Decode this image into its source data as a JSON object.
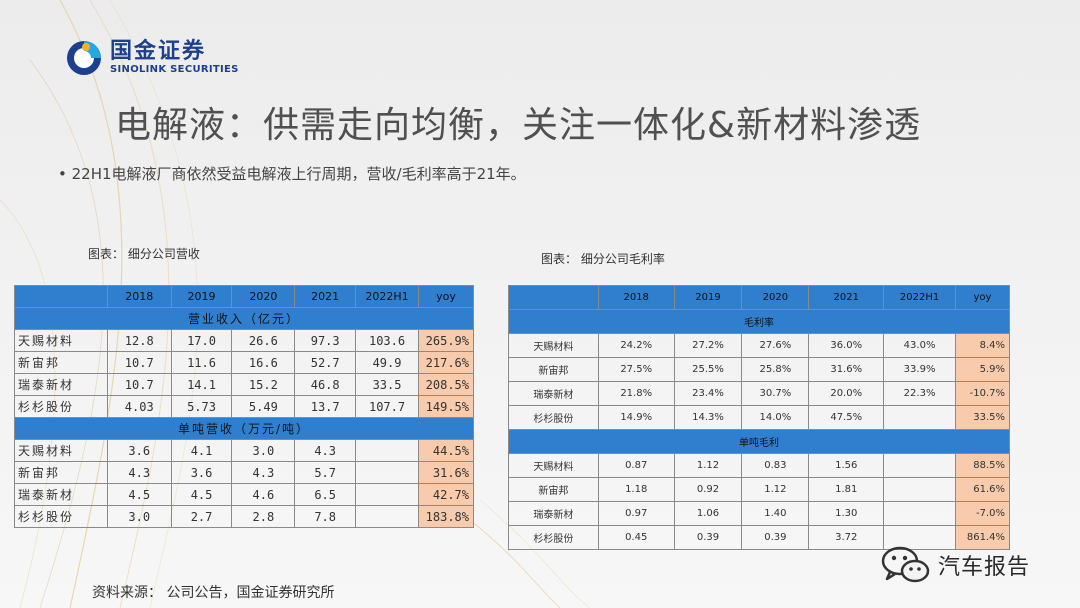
{
  "brand": {
    "name_cn": "国金证券",
    "name_en": "SINOLINK SECURITIES"
  },
  "title": "电解液：供需走向均衡，关注一体化&新材料渗透",
  "bullet": "22H1电解液厂商依然受益电解液上行周期，营收/毛利率高于21年。",
  "left_caption": "图表： 细分公司营收",
  "right_caption": "图表： 细分公司毛利率",
  "columns": [
    "2018",
    "2019",
    "2020",
    "2021",
    "2022H1",
    "yoy"
  ],
  "revenue_table": {
    "section1": "营业收入（亿元）",
    "rows1": [
      {
        "name": "天赐材料",
        "v": [
          "12.8",
          "17.0",
          "26.6",
          "97.3",
          "103.6"
        ],
        "yoy": "265.9%"
      },
      {
        "name": "新宙邦",
        "v": [
          "10.7",
          "11.6",
          "16.6",
          "52.7",
          "49.9"
        ],
        "yoy": "217.6%"
      },
      {
        "name": "瑞泰新材",
        "v": [
          "10.7",
          "14.1",
          "15.2",
          "46.8",
          "33.5"
        ],
        "yoy": "208.5%"
      },
      {
        "name": "杉杉股份",
        "v": [
          "4.03",
          "5.73",
          "5.49",
          "13.7",
          "107.7"
        ],
        "yoy": "149.5%"
      }
    ],
    "section2": "单吨营收（万元/吨）",
    "rows2": [
      {
        "name": "天赐材料",
        "v": [
          "3.6",
          "4.1",
          "3.0",
          "4.3",
          ""
        ],
        "yoy": "44.5%"
      },
      {
        "name": "新宙邦",
        "v": [
          "4.3",
          "3.6",
          "4.3",
          "5.7",
          ""
        ],
        "yoy": "31.6%"
      },
      {
        "name": "瑞泰新材",
        "v": [
          "4.5",
          "4.5",
          "4.6",
          "6.5",
          ""
        ],
        "yoy": "42.7%"
      },
      {
        "name": "杉杉股份",
        "v": [
          "3.0",
          "2.7",
          "2.8",
          "7.8",
          ""
        ],
        "yoy": "183.8%"
      }
    ]
  },
  "margin_table": {
    "section1": "毛利率",
    "rows1": [
      {
        "name": "天赐材料",
        "v": [
          "24.2%",
          "27.2%",
          "27.6%",
          "36.0%",
          "43.0%"
        ],
        "yoy": "8.4%"
      },
      {
        "name": "新宙邦",
        "v": [
          "27.5%",
          "25.5%",
          "25.8%",
          "31.6%",
          "33.9%"
        ],
        "yoy": "5.9%"
      },
      {
        "name": "瑞泰新材",
        "v": [
          "21.8%",
          "23.4%",
          "30.7%",
          "20.0%",
          "22.3%"
        ],
        "yoy": "-10.7%"
      },
      {
        "name": "杉杉股份",
        "v": [
          "14.9%",
          "14.3%",
          "14.0%",
          "47.5%",
          ""
        ],
        "yoy": "33.5%"
      }
    ],
    "section2": "单吨毛利",
    "rows2": [
      {
        "name": "天赐材料",
        "v": [
          "0.87",
          "1.12",
          "0.83",
          "1.56",
          ""
        ],
        "yoy": "88.5%"
      },
      {
        "name": "新宙邦",
        "v": [
          "1.18",
          "0.92",
          "1.12",
          "1.81",
          ""
        ],
        "yoy": "61.6%"
      },
      {
        "name": "瑞泰新材",
        "v": [
          "0.97",
          "1.06",
          "1.40",
          "1.30",
          ""
        ],
        "yoy": "-7.0%"
      },
      {
        "name": "杉杉股份",
        "v": [
          "0.45",
          "0.39",
          "0.39",
          "3.72",
          ""
        ],
        "yoy": "861.4%"
      }
    ]
  },
  "source": "资料来源： 公司公告，国金证券研究所",
  "watermark": "汽车报告",
  "colors": {
    "header_blue": "#2f7fce",
    "yoy_fill": "#f8cbad",
    "brand_blue": "#1c3f8f"
  }
}
